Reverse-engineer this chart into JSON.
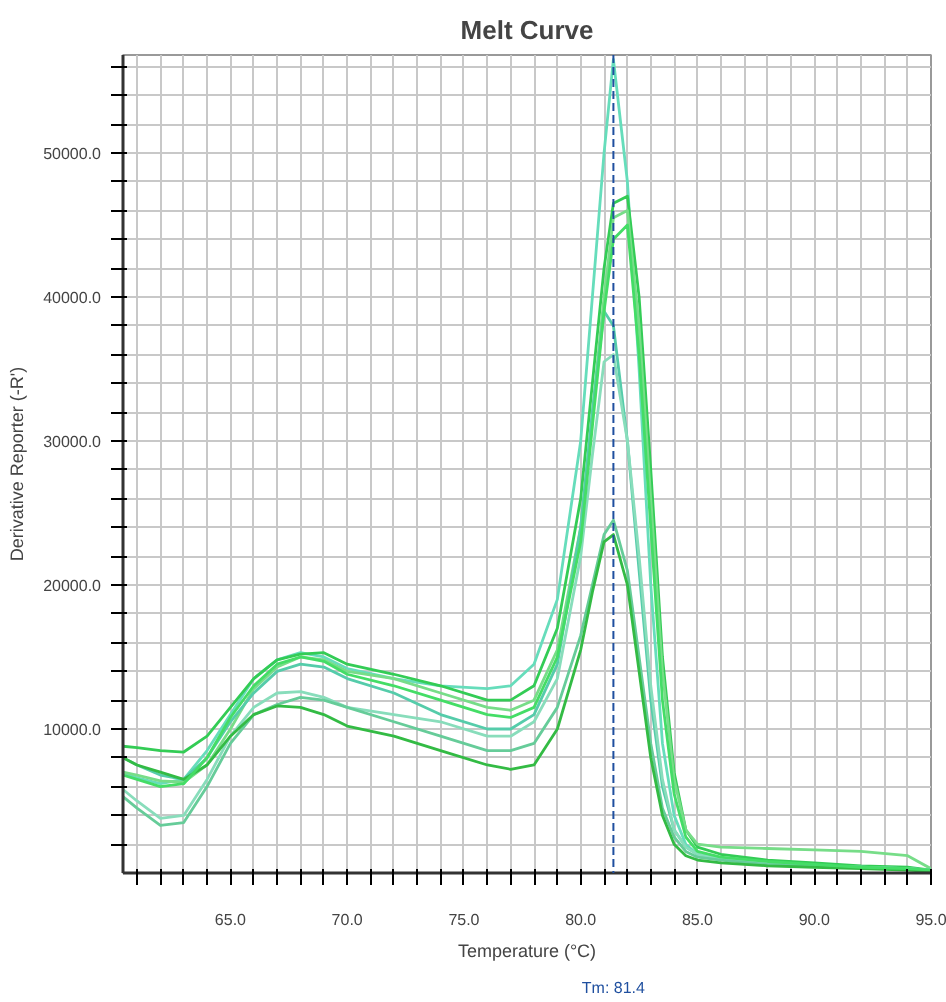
{
  "chart_data": {
    "type": "line",
    "title": "Melt Curve",
    "xlabel": "Temperature (°C)",
    "ylabel": "Derivative Reporter (-R')",
    "x": [
      60.4,
      61,
      62,
      63,
      64,
      65,
      66,
      67,
      68,
      69,
      70,
      72,
      74,
      76,
      77,
      78,
      79,
      80,
      80.5,
      81,
      81.4,
      82,
      82.5,
      83,
      83.5,
      84,
      84.5,
      85,
      86,
      88,
      90,
      92,
      94,
      95
    ],
    "series": [
      {
        "color": "#66ddbb",
        "values": [
          7000,
          6600,
          6200,
          6500,
          8500,
          11000,
          13500,
          14800,
          15300,
          15000,
          14200,
          13500,
          13000,
          12800,
          13000,
          14500,
          19000,
          30000,
          40000,
          50000,
          56500,
          48000,
          35000,
          20000,
          9000,
          4000,
          2000,
          1300,
          1000,
          700,
          500,
          400,
          300,
          200
        ]
      },
      {
        "color": "#33cc55",
        "values": [
          8800,
          8700,
          8500,
          8400,
          9500,
          11500,
          13500,
          14800,
          15200,
          15300,
          14500,
          13800,
          13000,
          12000,
          12000,
          13000,
          17000,
          26000,
          34000,
          42000,
          46500,
          47000,
          40000,
          28000,
          15000,
          7000,
          3000,
          1800,
          1300,
          900,
          700,
          500,
          400,
          200
        ]
      },
      {
        "color": "#77dd88",
        "values": [
          7000,
          6800,
          6400,
          6300,
          7500,
          10000,
          12800,
          14300,
          15000,
          14800,
          14000,
          13500,
          12500,
          11500,
          11300,
          12000,
          15500,
          24000,
          32000,
          40000,
          45500,
          46000,
          38000,
          26000,
          14000,
          6500,
          3000,
          2000,
          1800,
          1700,
          1600,
          1500,
          1200,
          300
        ]
      },
      {
        "color": "#55ccaa",
        "values": [
          8000,
          7500,
          6800,
          6500,
          8000,
          10500,
          12500,
          14000,
          14500,
          14300,
          13500,
          12500,
          11000,
          10000,
          10000,
          11000,
          14500,
          24000,
          32000,
          39000,
          38000,
          30000,
          21000,
          12000,
          6000,
          3000,
          1800,
          1300,
          1000,
          700,
          500,
          400,
          300,
          200
        ]
      },
      {
        "color": "#88ddbb",
        "values": [
          5800,
          5000,
          3800,
          4000,
          6500,
          9500,
          11500,
          12500,
          12600,
          12200,
          11500,
          11000,
          10500,
          9500,
          9500,
          10500,
          13500,
          22000,
          29000,
          35500,
          36000,
          30000,
          22000,
          13000,
          6500,
          3000,
          1800,
          1300,
          1000,
          700,
          500,
          400,
          300,
          200
        ]
      },
      {
        "color": "#66cc99",
        "values": [
          5300,
          4500,
          3300,
          3500,
          6000,
          9000,
          11000,
          11700,
          12200,
          12000,
          11500,
          10500,
          9500,
          8500,
          8500,
          9000,
          11500,
          16500,
          20000,
          23500,
          24500,
          21000,
          15000,
          9000,
          4500,
          2500,
          1500,
          1100,
          900,
          600,
          500,
          400,
          300,
          200
        ]
      },
      {
        "color": "#33bb44",
        "values": [
          8000,
          7500,
          7000,
          6500,
          7500,
          9500,
          11000,
          11600,
          11500,
          11000,
          10200,
          9500,
          8500,
          7500,
          7200,
          7500,
          10000,
          15500,
          19500,
          23000,
          23500,
          20000,
          14000,
          8000,
          4000,
          2000,
          1200,
          900,
          700,
          500,
          400,
          300,
          200,
          100
        ]
      },
      {
        "color": "#44dd66",
        "values": [
          6800,
          6500,
          6000,
          6200,
          8000,
          10800,
          13000,
          14500,
          15000,
          14700,
          13800,
          13000,
          12000,
          11000,
          10800,
          11500,
          15000,
          23000,
          31000,
          39000,
          44000,
          45000,
          36000,
          24000,
          12000,
          5500,
          2500,
          1500,
          1100,
          800,
          600,
          400,
          300,
          200
        ]
      }
    ],
    "xlim": [
      60.4,
      95
    ],
    "ylim": [
      0,
      56800
    ],
    "xticks": [
      {
        "value": 61,
        "label": null
      },
      {
        "value": 62,
        "label": null
      },
      {
        "value": 63,
        "label": null
      },
      {
        "value": 64,
        "label": null
      },
      {
        "value": 65,
        "label": "65.0"
      },
      {
        "value": 66,
        "label": null
      },
      {
        "value": 67,
        "label": null
      },
      {
        "value": 68,
        "label": null
      },
      {
        "value": 69,
        "label": null
      },
      {
        "value": 70,
        "label": "70.0"
      },
      {
        "value": 71,
        "label": null
      },
      {
        "value": 72,
        "label": null
      },
      {
        "value": 73,
        "label": null
      },
      {
        "value": 74,
        "label": null
      },
      {
        "value": 75,
        "label": "75.0"
      },
      {
        "value": 76,
        "label": null
      },
      {
        "value": 77,
        "label": null
      },
      {
        "value": 78,
        "label": null
      },
      {
        "value": 79,
        "label": null
      },
      {
        "value": 80,
        "label": "80.0"
      },
      {
        "value": 81,
        "label": null
      },
      {
        "value": 82,
        "label": null
      },
      {
        "value": 83,
        "label": null
      },
      {
        "value": 84,
        "label": null
      },
      {
        "value": 85,
        "label": "85.0"
      },
      {
        "value": 86,
        "label": null
      },
      {
        "value": 87,
        "label": null
      },
      {
        "value": 88,
        "label": null
      },
      {
        "value": 89,
        "label": null
      },
      {
        "value": 90,
        "label": "90.0"
      },
      {
        "value": 91,
        "label": null
      },
      {
        "value": 92,
        "label": null
      },
      {
        "value": 93,
        "label": null
      },
      {
        "value": 94,
        "label": null
      },
      {
        "value": 95,
        "label": "95.0"
      }
    ],
    "yticks": [
      {
        "value": 2000,
        "label": null
      },
      {
        "value": 4000,
        "label": null
      },
      {
        "value": 6000,
        "label": null
      },
      {
        "value": 8000,
        "label": null
      },
      {
        "value": 10000,
        "label": "10000.0"
      },
      {
        "value": 12000,
        "label": null
      },
      {
        "value": 14000,
        "label": null
      },
      {
        "value": 16000,
        "label": null
      },
      {
        "value": 18000,
        "label": null
      },
      {
        "value": 20000,
        "label": "20000.0"
      },
      {
        "value": 22000,
        "label": null
      },
      {
        "value": 24000,
        "label": null
      },
      {
        "value": 26000,
        "label": null
      },
      {
        "value": 28000,
        "label": null
      },
      {
        "value": 30000,
        "label": "30000.0"
      },
      {
        "value": 32000,
        "label": null
      },
      {
        "value": 34000,
        "label": null
      },
      {
        "value": 36000,
        "label": null
      },
      {
        "value": 38000,
        "label": null
      },
      {
        "value": 40000,
        "label": "40000.0"
      },
      {
        "value": 42000,
        "label": null
      },
      {
        "value": 44000,
        "label": null
      },
      {
        "value": 46000,
        "label": null
      },
      {
        "value": 48000,
        "label": null
      },
      {
        "value": 50000,
        "label": "50000.0"
      },
      {
        "value": 52000,
        "label": null
      },
      {
        "value": 54000,
        "label": null
      },
      {
        "value": 56000,
        "label": null
      }
    ],
    "grid": true,
    "ref_lines": [
      {
        "axis": "x",
        "value": 81.4,
        "label": "Tm: 81.4",
        "color": "#1f4f9f",
        "line_style": "dashed"
      }
    ]
  }
}
